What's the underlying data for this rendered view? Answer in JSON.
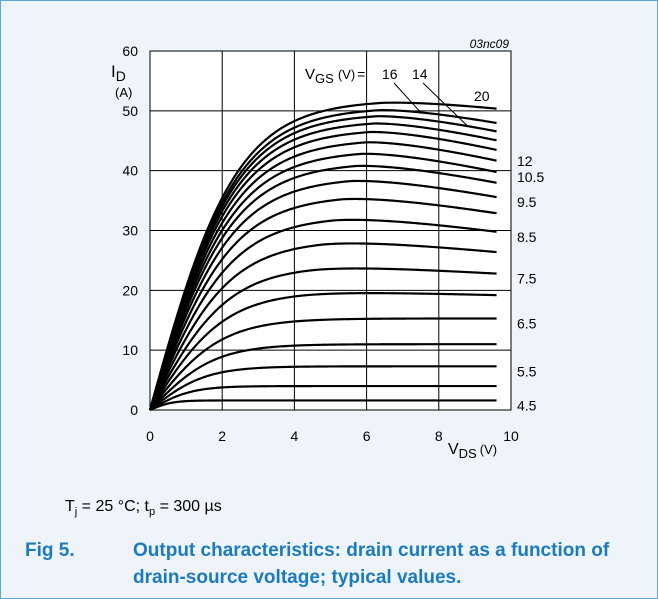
{
  "chart_data": {
    "type": "line",
    "figure_code": "03nc09",
    "xlabel_main": "V",
    "xlabel_sub": "DS",
    "xlabel_unit": "(V)",
    "ylabel_main": "I",
    "ylabel_sub": "D",
    "ylabel_unit": "(A)",
    "xlim": [
      0,
      10
    ],
    "ylim": [
      0,
      60
    ],
    "xticks": [
      "0",
      "2",
      "4",
      "6",
      "8",
      "10"
    ],
    "yticks": [
      "0",
      "10",
      "20",
      "30",
      "40",
      "50",
      "60"
    ],
    "grid": true,
    "vgs_label_prefix_main": "V",
    "vgs_label_prefix_sub": "GS",
    "vgs_label_prefix_unit": "(V)",
    "vgs_label_eq": "=",
    "series": [
      {
        "vgs": 4.5,
        "sat": 1.6,
        "drop": 0.0,
        "label": "4.5"
      },
      {
        "vgs": 5,
        "sat": 4.0,
        "drop": 0.0,
        "label": ""
      },
      {
        "vgs": 5.5,
        "sat": 7.3,
        "drop": 0.0,
        "label": "5.5"
      },
      {
        "vgs": 6,
        "sat": 11.0,
        "drop": 0.0,
        "label": ""
      },
      {
        "vgs": 6.5,
        "sat": 15.3,
        "drop": 0.0,
        "label": "6.5"
      },
      {
        "vgs": 7,
        "sat": 19.8,
        "drop": 0.6,
        "label": ""
      },
      {
        "vgs": 7.5,
        "sat": 24.1,
        "drop": 1.3,
        "label": "7.5"
      },
      {
        "vgs": 8,
        "sat": 28.4,
        "drop": 2.0,
        "label": ""
      },
      {
        "vgs": 8.5,
        "sat": 32.4,
        "drop": 2.6,
        "label": "8.5"
      },
      {
        "vgs": 9,
        "sat": 35.9,
        "drop": 3.0,
        "label": ""
      },
      {
        "vgs": 9.5,
        "sat": 38.9,
        "drop": 3.3,
        "label": "9.5"
      },
      {
        "vgs": 10,
        "sat": 41.4,
        "drop": 3.4,
        "label": ""
      },
      {
        "vgs": 10.5,
        "sat": 43.4,
        "drop": 3.6,
        "label": "10.5"
      },
      {
        "vgs": 11,
        "sat": 45.3,
        "drop": 3.6,
        "label": ""
      },
      {
        "vgs": 12,
        "sat": 47.0,
        "drop": 3.5,
        "label": "12"
      },
      {
        "vgs": 13,
        "sat": 48.4,
        "drop": 3.3,
        "label": ""
      },
      {
        "vgs": 14,
        "sat": 49.6,
        "drop": 3.0,
        "label": "14"
      },
      {
        "vgs": 16,
        "sat": 50.6,
        "drop": 2.6,
        "label": "16"
      },
      {
        "vgs": 20,
        "sat": 51.8,
        "drop": 1.4,
        "label": "20"
      }
    ]
  },
  "conditions": {
    "tj_main": "T",
    "tj_sub": "j",
    "tj_rest": " = 25 °C; t",
    "tp_sub": "p",
    "tp_rest": " = 300 µs"
  },
  "caption": {
    "fig_label": "Fig 5.",
    "text": "Output characteristics: drain current as a function of drain-source voltage; typical values."
  }
}
